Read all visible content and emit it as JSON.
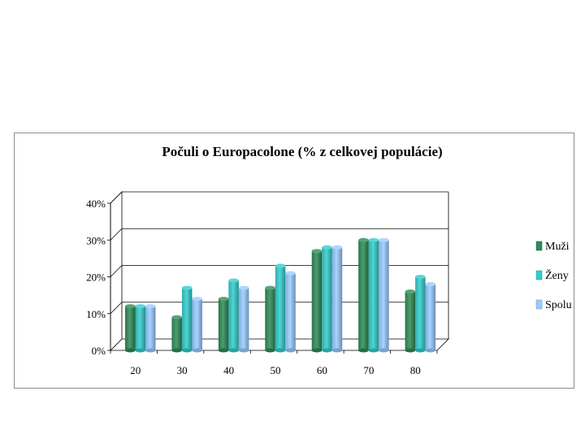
{
  "chart_data": {
    "type": "bar",
    "title": "Počuli o Europacolone (% z celkovej populácie)",
    "categories": [
      "20",
      "30",
      "40",
      "50",
      "60",
      "70",
      "80"
    ],
    "series": [
      {
        "name": "Muži",
        "values": [
          12,
          9,
          14,
          17,
          27,
          30,
          16
        ],
        "color": "#2e8b57"
      },
      {
        "name": "Ženy",
        "values": [
          12,
          17,
          19,
          23,
          28,
          30,
          20
        ],
        "color": "#33cccc"
      },
      {
        "name": "Spolu",
        "values": [
          12,
          14,
          17,
          21,
          28,
          30,
          18
        ],
        "color": "#99ccff"
      }
    ],
    "y_ticks": [
      "0%",
      "10%",
      "20%",
      "30%",
      "40%"
    ],
    "ylim": [
      0,
      40
    ],
    "grid": true,
    "legend": "right",
    "three_d": true
  }
}
